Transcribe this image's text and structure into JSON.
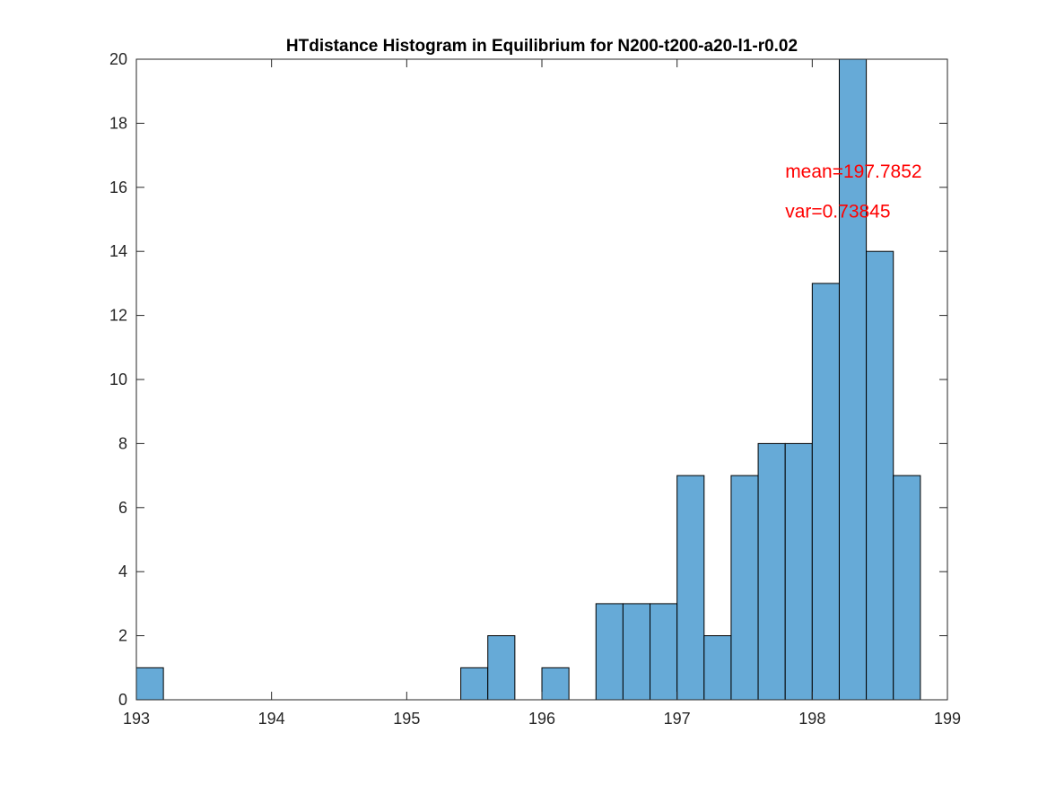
{
  "chart_data": {
    "type": "bar",
    "title": "HTdistance Histogram in Equilibrium for N200-t200-a20-l1-r0.02",
    "xlabel": "",
    "ylabel": "",
    "xlim": [
      193,
      199
    ],
    "ylim": [
      0,
      20
    ],
    "xticks": [
      193,
      194,
      195,
      196,
      197,
      198,
      199
    ],
    "yticks": [
      0,
      2,
      4,
      6,
      8,
      10,
      12,
      14,
      16,
      18,
      20
    ],
    "bin_width": 0.2,
    "bins": [
      {
        "start": 193.0,
        "count": 1
      },
      {
        "start": 195.4,
        "count": 1
      },
      {
        "start": 195.6,
        "count": 2
      },
      {
        "start": 196.0,
        "count": 1
      },
      {
        "start": 196.4,
        "count": 3
      },
      {
        "start": 196.6,
        "count": 3
      },
      {
        "start": 196.8,
        "count": 3
      },
      {
        "start": 197.0,
        "count": 7
      },
      {
        "start": 197.2,
        "count": 2
      },
      {
        "start": 197.4,
        "count": 7
      },
      {
        "start": 197.6,
        "count": 8
      },
      {
        "start": 197.8,
        "count": 8
      },
      {
        "start": 198.0,
        "count": 13
      },
      {
        "start": 198.2,
        "count": 20
      },
      {
        "start": 198.4,
        "count": 14
      },
      {
        "start": 198.6,
        "count": 7
      }
    ],
    "annotations": [
      {
        "text": "mean=197.7852",
        "x": 197.8,
        "y": 16.5
      },
      {
        "text": "var=0.73845",
        "x": 197.8,
        "y": 15.25
      }
    ],
    "grid": false,
    "legend": "none",
    "colors": {
      "bar_fill": "#66aad7",
      "bar_edge": "#000000",
      "annotation": "#ff0000",
      "axis": "#262626"
    }
  }
}
